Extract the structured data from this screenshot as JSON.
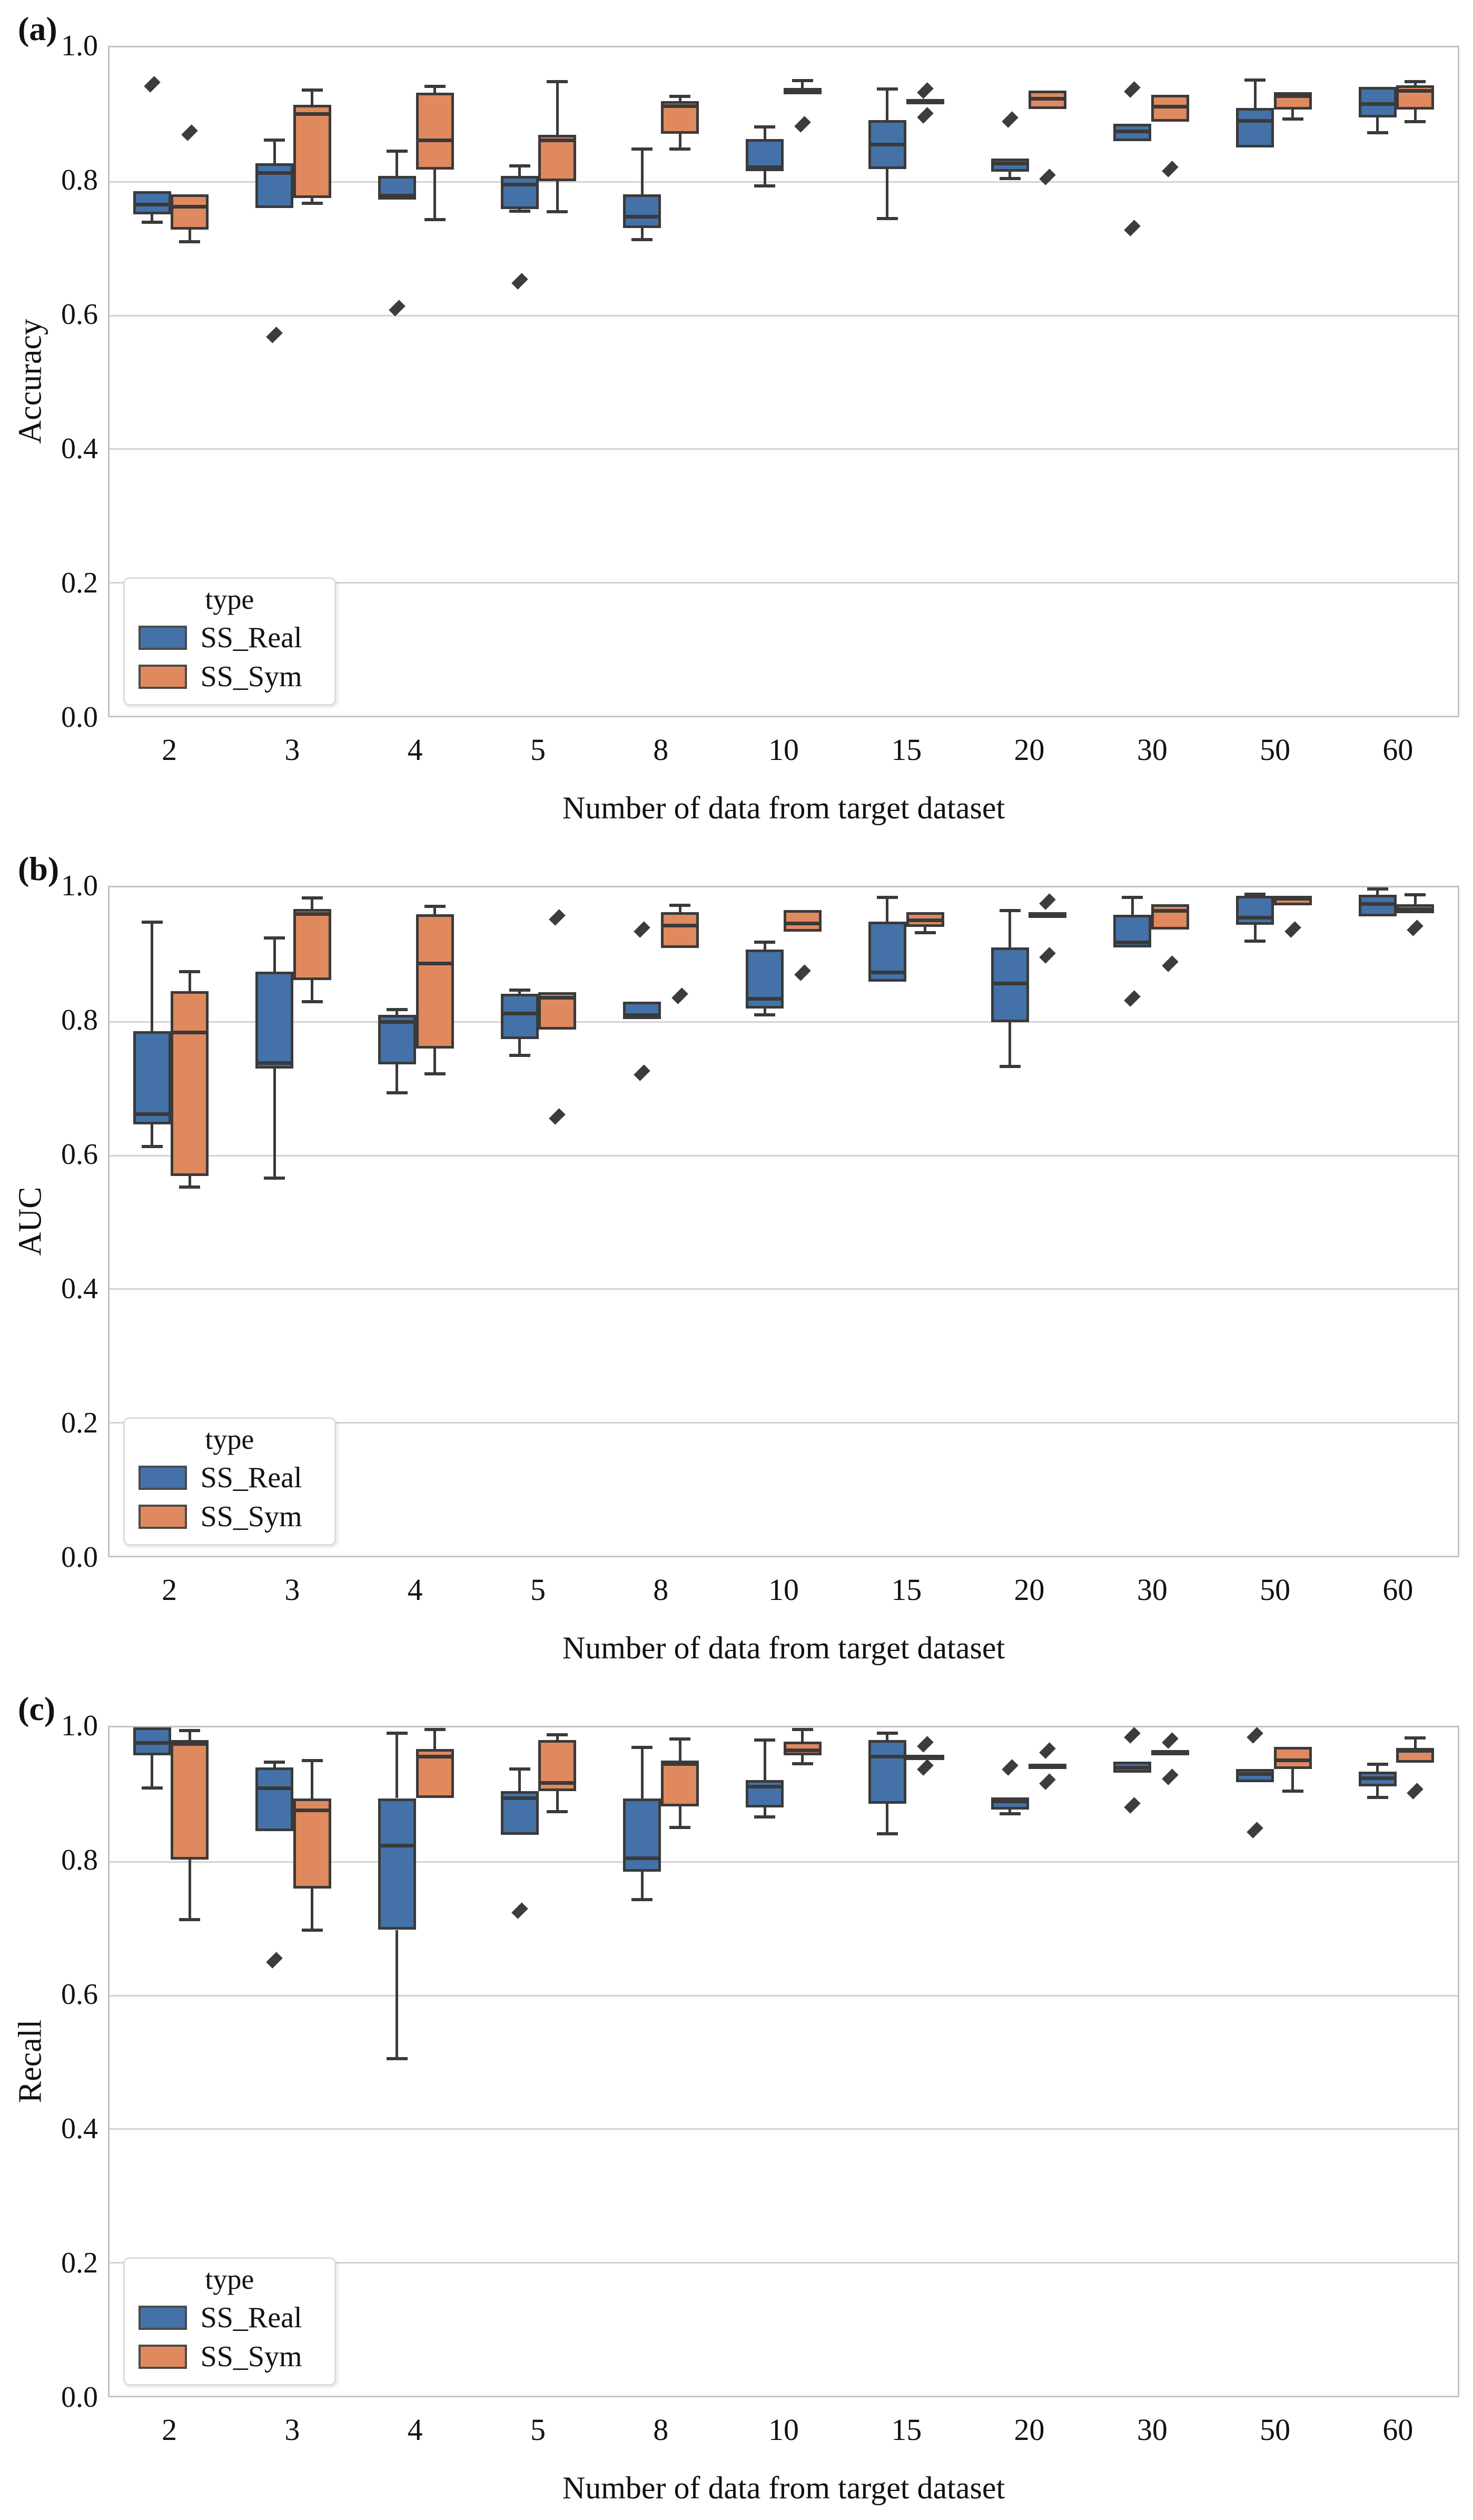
{
  "chart_data": {
    "type": "boxplot",
    "categories": [
      "2",
      "3",
      "4",
      "5",
      "8",
      "10",
      "15",
      "20",
      "30",
      "50",
      "60"
    ],
    "colors": {
      "box_edge": "#3A3A3A",
      "outlier": "#3C3C3C",
      "gridline": "#D2D2D2",
      "plot_border": "#C2C2C2"
    },
    "panels": [
      {
        "label": "(a)",
        "ylabel": "Accuracy",
        "xlabel": "Number of data from target dataset",
        "ylim": [
          0.0,
          1.0
        ],
        "yticks": [
          "1.0",
          "0.8",
          "0.6",
          "0.4",
          "0.2",
          "0.0"
        ],
        "legend": {
          "title": "type"
        },
        "series": [
          {
            "name": "SS_Real",
            "color": "#4472A8",
            "boxes": [
              {
                "lo": 0.738,
                "q1": 0.75,
                "med": 0.765,
                "q3": 0.785,
                "hi": 0.785,
                "out": [
                  0.945
                ]
              },
              {
                "lo": 0.76,
                "q1": 0.76,
                "med": 0.812,
                "q3": 0.827,
                "hi": 0.861,
                "out": [
                  0.57
                ]
              },
              {
                "lo": 0.77,
                "q1": 0.772,
                "med": 0.778,
                "q3": 0.808,
                "hi": 0.845,
                "out": [
                  0.61
                ]
              },
              {
                "lo": 0.755,
                "q1": 0.758,
                "med": 0.795,
                "q3": 0.808,
                "hi": 0.823,
                "out": [
                  0.65
                ]
              },
              {
                "lo": 0.712,
                "q1": 0.73,
                "med": 0.747,
                "q3": 0.78,
                "hi": 0.848,
                "out": []
              },
              {
                "lo": 0.793,
                "q1": 0.815,
                "med": 0.821,
                "q3": 0.863,
                "hi": 0.881,
                "out": []
              },
              {
                "lo": 0.744,
                "q1": 0.818,
                "med": 0.855,
                "q3": 0.891,
                "hi": 0.938,
                "out": []
              },
              {
                "lo": 0.804,
                "q1": 0.814,
                "med": 0.826,
                "q3": 0.834,
                "hi": 0.834,
                "out": [
                  0.892
                ]
              },
              {
                "lo": 0.86,
                "q1": 0.86,
                "med": 0.874,
                "q3": 0.886,
                "hi": 0.886,
                "out": [
                  0.937,
                  0.73
                ]
              },
              {
                "lo": 0.85,
                "q1": 0.85,
                "med": 0.89,
                "q3": 0.909,
                "hi": 0.951,
                "out": []
              },
              {
                "lo": 0.872,
                "q1": 0.895,
                "med": 0.915,
                "q3": 0.941,
                "hi": 0.941,
                "out": []
              }
            ]
          },
          {
            "name": "SS_Sym",
            "color": "#E0895E",
            "boxes": [
              {
                "lo": 0.709,
                "q1": 0.727,
                "med": 0.762,
                "q3": 0.78,
                "hi": 0.78,
                "out": [
                  0.872
                ]
              },
              {
                "lo": 0.767,
                "q1": 0.775,
                "med": 0.9,
                "q3": 0.914,
                "hi": 0.936,
                "out": []
              },
              {
                "lo": 0.742,
                "q1": 0.817,
                "med": 0.861,
                "q3": 0.932,
                "hi": 0.942,
                "out": []
              },
              {
                "lo": 0.754,
                "q1": 0.8,
                "med": 0.861,
                "q3": 0.869,
                "hi": 0.949,
                "out": []
              },
              {
                "lo": 0.848,
                "q1": 0.871,
                "med": 0.912,
                "q3": 0.92,
                "hi": 0.927,
                "out": []
              },
              {
                "lo": 0.93,
                "q1": 0.93,
                "med": 0.935,
                "q3": 0.939,
                "hi": 0.95,
                "out": [
                  0.885
                ]
              },
              {
                "lo": 0.916,
                "q1": 0.916,
                "med": 0.92,
                "q3": 0.923,
                "hi": 0.923,
                "out": [
                  0.935,
                  0.898
                ]
              },
              {
                "lo": 0.908,
                "q1": 0.908,
                "med": 0.923,
                "q3": 0.935,
                "hi": 0.935,
                "out": [
                  0.806
                ]
              },
              {
                "lo": 0.889,
                "q1": 0.889,
                "med": 0.911,
                "q3": 0.929,
                "hi": 0.929,
                "out": [
                  0.818
                ]
              },
              {
                "lo": 0.893,
                "q1": 0.907,
                "med": 0.927,
                "q3": 0.933,
                "hi": 0.933,
                "out": []
              },
              {
                "lo": 0.889,
                "q1": 0.907,
                "med": 0.935,
                "q3": 0.943,
                "hi": 0.949,
                "out": []
              }
            ]
          }
        ]
      },
      {
        "label": "(b)",
        "ylabel": "AUC",
        "xlabel": "Number of data from target dataset",
        "ylim": [
          0.0,
          1.0
        ],
        "yticks": [
          "1.0",
          "0.8",
          "0.6",
          "0.4",
          "0.2",
          "0.0"
        ],
        "legend": {
          "title": "type"
        },
        "series": [
          {
            "name": "SS_Real",
            "color": "#4472A8",
            "boxes": [
              {
                "lo": 0.612,
                "q1": 0.645,
                "med": 0.661,
                "q3": 0.785,
                "hi": 0.948,
                "out": []
              },
              {
                "lo": 0.565,
                "q1": 0.729,
                "med": 0.737,
                "q3": 0.874,
                "hi": 0.924,
                "out": []
              },
              {
                "lo": 0.693,
                "q1": 0.735,
                "med": 0.799,
                "q3": 0.809,
                "hi": 0.817,
                "out": []
              },
              {
                "lo": 0.749,
                "q1": 0.773,
                "med": 0.811,
                "q3": 0.841,
                "hi": 0.846,
                "out": []
              },
              {
                "lo": 0.803,
                "q1": 0.803,
                "med": 0.809,
                "q3": 0.829,
                "hi": 0.829,
                "out": [
                  0.937,
                  0.723
                ]
              },
              {
                "lo": 0.809,
                "q1": 0.819,
                "med": 0.833,
                "q3": 0.907,
                "hi": 0.918,
                "out": []
              },
              {
                "lo": 0.859,
                "q1": 0.859,
                "med": 0.873,
                "q3": 0.949,
                "hi": 0.985,
                "out": []
              },
              {
                "lo": 0.732,
                "q1": 0.798,
                "med": 0.856,
                "q3": 0.91,
                "hi": 0.965,
                "out": []
              },
              {
                "lo": 0.91,
                "q1": 0.91,
                "med": 0.918,
                "q3": 0.959,
                "hi": 0.985,
                "out": [
                  0.834
                ]
              },
              {
                "lo": 0.92,
                "q1": 0.944,
                "med": 0.955,
                "q3": 0.987,
                "hi": 0.99,
                "out": []
              },
              {
                "lo": 0.955,
                "q1": 0.957,
                "med": 0.975,
                "q3": 0.989,
                "hi": 0.998,
                "out": []
              }
            ]
          },
          {
            "name": "SS_Sym",
            "color": "#E0895E",
            "boxes": [
              {
                "lo": 0.552,
                "q1": 0.568,
                "med": 0.783,
                "q3": 0.845,
                "hi": 0.874,
                "out": []
              },
              {
                "lo": 0.829,
                "q1": 0.861,
                "med": 0.96,
                "q3": 0.968,
                "hi": 0.984,
                "out": []
              },
              {
                "lo": 0.721,
                "q1": 0.759,
                "med": 0.886,
                "q3": 0.96,
                "hi": 0.972,
                "out": []
              },
              {
                "lo": 0.787,
                "q1": 0.787,
                "med": 0.835,
                "q3": 0.843,
                "hi": 0.843,
                "out": [
                  0.955,
                  0.657
                ]
              },
              {
                "lo": 0.909,
                "q1": 0.909,
                "med": 0.943,
                "q3": 0.963,
                "hi": 0.973,
                "out": [
                  0.838
                ]
              },
              {
                "lo": 0.934,
                "q1": 0.934,
                "med": 0.946,
                "q3": 0.966,
                "hi": 0.968,
                "out": [
                  0.872
                ]
              },
              {
                "lo": 0.932,
                "q1": 0.941,
                "med": 0.951,
                "q3": 0.963,
                "hi": 0.963,
                "out": []
              },
              {
                "lo": 0.956,
                "q1": 0.956,
                "med": 0.96,
                "q3": 0.962,
                "hi": 0.962,
                "out": [
                  0.979,
                  0.898
                ]
              },
              {
                "lo": 0.937,
                "q1": 0.937,
                "med": 0.965,
                "q3": 0.975,
                "hi": 0.975,
                "out": [
                  0.886
                ]
              },
              {
                "lo": 0.973,
                "q1": 0.973,
                "med": 0.983,
                "q3": 0.987,
                "hi": 0.987,
                "out": [
                  0.937
                ]
              },
              {
                "lo": 0.961,
                "q1": 0.961,
                "med": 0.967,
                "q3": 0.975,
                "hi": 0.989,
                "out": [
                  0.939
                ]
              }
            ]
          }
        ]
      },
      {
        "label": "(c)",
        "ylabel": "Recall",
        "xlabel": "Number of data from target dataset",
        "ylim": [
          0.0,
          1.0
        ],
        "yticks": [
          "1.0",
          "0.8",
          "0.6",
          "0.4",
          "0.2",
          "0.0"
        ],
        "legend": {
          "title": "type"
        },
        "series": [
          {
            "name": "SS_Real",
            "color": "#4472A8",
            "boxes": [
              {
                "lo": 0.909,
                "q1": 0.958,
                "med": 0.977,
                "q3": 1.0,
                "hi": 1.0,
                "out": []
              },
              {
                "lo": 0.845,
                "q1": 0.845,
                "med": 0.909,
                "q3": 0.94,
                "hi": 0.948,
                "out": [
                  0.652
                ]
              },
              {
                "lo": 0.504,
                "q1": 0.697,
                "med": 0.823,
                "q3": 0.894,
                "hi": 0.991,
                "out": []
              },
              {
                "lo": 0.839,
                "q1": 0.839,
                "med": 0.894,
                "q3": 0.905,
                "hi": 0.938,
                "out": [
                  0.726
                ]
              },
              {
                "lo": 0.742,
                "q1": 0.784,
                "med": 0.804,
                "q3": 0.894,
                "hi": 0.97,
                "out": []
              },
              {
                "lo": 0.866,
                "q1": 0.88,
                "med": 0.911,
                "q3": 0.921,
                "hi": 0.981,
                "out": []
              },
              {
                "lo": 0.841,
                "q1": 0.886,
                "med": 0.956,
                "q3": 0.981,
                "hi": 0.991,
                "out": []
              },
              {
                "lo": 0.871,
                "q1": 0.877,
                "med": 0.889,
                "q3": 0.895,
                "hi": 0.895,
                "out": [
                  0.94
                ]
              },
              {
                "lo": 0.932,
                "q1": 0.932,
                "med": 0.94,
                "q3": 0.949,
                "hi": 0.949,
                "out": [
                  0.988,
                  0.883
                ]
              },
              {
                "lo": 0.918,
                "q1": 0.918,
                "med": 0.93,
                "q3": 0.938,
                "hi": 0.938,
                "out": [
                  0.988,
                  0.846
                ]
              },
              {
                "lo": 0.895,
                "q1": 0.912,
                "med": 0.924,
                "q3": 0.934,
                "hi": 0.945,
                "out": []
              }
            ]
          },
          {
            "name": "SS_Sym",
            "color": "#E0895E",
            "boxes": [
              {
                "lo": 0.712,
                "q1": 0.802,
                "med": 0.975,
                "q3": 0.981,
                "hi": 0.995,
                "out": []
              },
              {
                "lo": 0.697,
                "q1": 0.759,
                "med": 0.876,
                "q3": 0.894,
                "hi": 0.95,
                "out": []
              },
              {
                "lo": 0.894,
                "q1": 0.894,
                "med": 0.956,
                "q3": 0.968,
                "hi": 0.997,
                "out": []
              },
              {
                "lo": 0.874,
                "q1": 0.905,
                "med": 0.917,
                "q3": 0.981,
                "hi": 0.989,
                "out": []
              },
              {
                "lo": 0.85,
                "q1": 0.882,
                "med": 0.945,
                "q3": 0.95,
                "hi": 0.983,
                "out": []
              },
              {
                "lo": 0.946,
                "q1": 0.958,
                "med": 0.966,
                "q3": 0.979,
                "hi": 0.997,
                "out": []
              },
              {
                "lo": 0.953,
                "q1": 0.953,
                "med": 0.956,
                "q3": 0.959,
                "hi": 0.959,
                "out": [
                  0.975,
                  0.94
                ]
              },
              {
                "lo": 0.94,
                "q1": 0.94,
                "med": 0.943,
                "q3": 0.946,
                "hi": 0.946,
                "out": [
                  0.965,
                  0.919
                ]
              },
              {
                "lo": 0.96,
                "q1": 0.96,
                "med": 0.963,
                "q3": 0.966,
                "hi": 0.966,
                "out": [
                  0.98,
                  0.926
                ]
              },
              {
                "lo": 0.905,
                "q1": 0.938,
                "med": 0.951,
                "q3": 0.971,
                "hi": 0.971,
                "out": []
              },
              {
                "lo": 0.947,
                "q1": 0.947,
                "med": 0.965,
                "q3": 0.969,
                "hi": 0.984,
                "out": [
                  0.905
                ]
              }
            ]
          }
        ]
      }
    ]
  }
}
